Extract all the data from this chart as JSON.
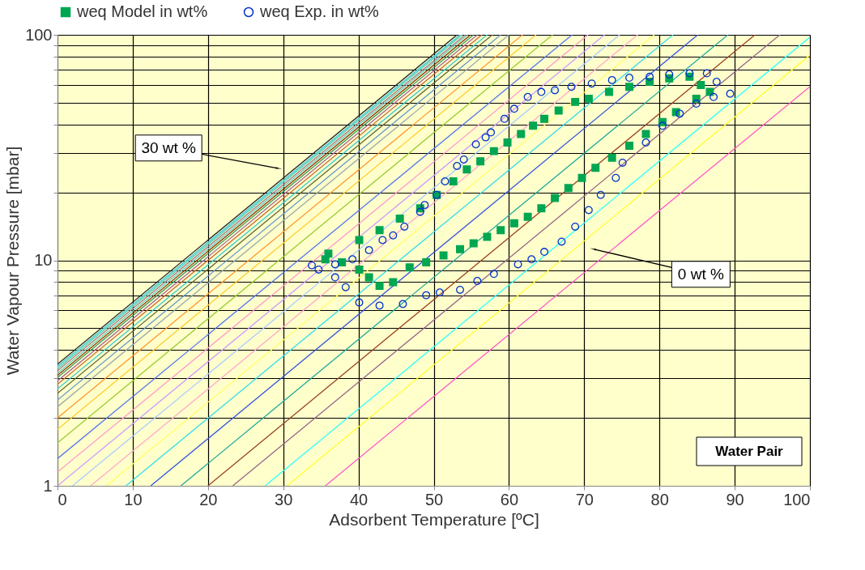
{
  "chart_data": {
    "type": "line",
    "xlabel": "Adsorbent Temperature [ºC]",
    "ylabel": "Water Vapour Pressure [mbar]",
    "xlim": [
      0,
      100
    ],
    "xticks": [
      0,
      10,
      20,
      30,
      40,
      50,
      60,
      70,
      80,
      90,
      100
    ],
    "ylim": [
      1,
      100
    ],
    "log": "y",
    "yticks": [
      1,
      {
        "value": 2,
        "label": null
      },
      {
        "value": 3,
        "label": null
      },
      {
        "value": 4,
        "label": null
      },
      {
        "value": 5,
        "label": null
      },
      {
        "value": 6,
        "label": null
      },
      {
        "value": 7,
        "label": null
      },
      {
        "value": 8,
        "label": null
      },
      {
        "value": 9,
        "label": null
      },
      10,
      {
        "value": 20,
        "label": null
      },
      {
        "value": 30,
        "label": null
      },
      {
        "value": 40,
        "label": null
      },
      {
        "value": 50,
        "label": null
      },
      {
        "value": 60,
        "label": null
      },
      {
        "value": 70,
        "label": null
      },
      {
        "value": 80,
        "label": null
      },
      {
        "value": 90,
        "label": null
      },
      100
    ],
    "grid": true,
    "legend": "top",
    "line_style": "solid",
    "annotations": [
      {
        "text": "30 wt %",
        "x": 29.3,
        "y": 25.6
      },
      {
        "text": "0 wt %",
        "x": 71.3,
        "y": 11.2
      },
      "Water Pair"
    ],
    "series": [
      {
        "type": "scatter",
        "marker": "square",
        "name": "weq Model in wt%",
        "color": "#00a651",
        "x": [
          36.0,
          40.1,
          42.8,
          45.5,
          48.2,
          50.4,
          52.6,
          54.4,
          56.2,
          58.0,
          59.8,
          61.6,
          63.2,
          64.7,
          66.6,
          68.8,
          70.6,
          73.3,
          76.0,
          78.7,
          81.3,
          84.0,
          85.5,
          86.7,
          84.9,
          82.2,
          80.4,
          78.2,
          76.0,
          73.7,
          71.5,
          69.7,
          67.9,
          66.1,
          64.3,
          62.5,
          60.7,
          58.9,
          57.1,
          55.3,
          53.5,
          51.3,
          49.0,
          46.8,
          44.6,
          42.8,
          41.4,
          40.1,
          37.8,
          35.6
        ],
        "values": [
          10.7,
          12.3,
          13.6,
          15.3,
          17.0,
          19.5,
          22.4,
          25.3,
          27.5,
          30.5,
          33.3,
          36.3,
          39.5,
          42.4,
          46.2,
          50.4,
          52.1,
          55.8,
          58.8,
          61.9,
          64.1,
          65.2,
          59.9,
          55.8,
          52.1,
          45.4,
          41.0,
          36.3,
          32.2,
          28.5,
          25.7,
          23.2,
          20.9,
          18.9,
          17.0,
          15.6,
          14.6,
          13.6,
          12.7,
          11.9,
          11.2,
          10.5,
          9.8,
          9.3,
          8.0,
          7.7,
          8.4,
          9.1,
          9.8,
          10.1
        ]
      },
      {
        "type": "scatter",
        "marker": "circle",
        "name": "weq Exp. in wt%",
        "color": "#0033cc",
        "x": [
          36.9,
          39.2,
          41.4,
          43.2,
          44.6,
          46.1,
          48.2,
          48.8,
          50.4,
          51.5,
          53.1,
          54.0,
          55.6,
          56.9,
          57.6,
          59.4,
          60.7,
          62.5,
          64.3,
          66.1,
          68.3,
          71.0,
          73.7,
          76.0,
          78.7,
          81.3,
          84.0,
          86.3,
          87.6,
          89.4,
          87.2,
          84.9,
          82.7,
          80.4,
          78.2,
          75.1,
          74.2,
          72.2,
          70.6,
          68.8,
          67.0,
          64.7,
          63.0,
          61.2,
          58.0,
          55.8,
          53.5,
          50.8,
          49.0,
          45.9,
          42.8,
          40.1,
          38.3,
          36.9,
          34.7,
          33.8
        ],
        "values": [
          9.6,
          10.1,
          11.1,
          12.3,
          12.9,
          14.1,
          16.4,
          17.6,
          19.5,
          22.4,
          26.2,
          28.0,
          32.7,
          35.1,
          36.9,
          42.4,
          47.0,
          53.0,
          55.8,
          56.8,
          58.8,
          60.8,
          63.0,
          64.5,
          65.2,
          66.8,
          67.5,
          67.5,
          61.9,
          54.8,
          53.0,
          49.5,
          44.7,
          39.5,
          33.3,
          27.1,
          23.2,
          19.5,
          16.7,
          14.1,
          12.1,
          10.9,
          10.1,
          9.6,
          8.7,
          8.1,
          7.4,
          7.2,
          7.0,
          6.4,
          6.3,
          6.5,
          7.6,
          8.4,
          9.1,
          9.5
        ]
      },
      {
        "color": "#ff55cc",
        "x": [
          35.6,
          100
        ],
        "values": [
          1,
          58.9
        ]
      },
      {
        "color": "#ffff33",
        "x": [
          30.5,
          100
        ],
        "values": [
          1,
          81.3
        ]
      },
      {
        "color": "#33ffff",
        "x": [
          27.6,
          100
        ],
        "values": [
          1,
          97.7
        ]
      },
      {
        "color": "#996688",
        "x": [
          23.3,
          96.0
        ],
        "values": [
          1,
          100
        ]
      },
      {
        "color": "#994422",
        "x": [
          20.0,
          92.7
        ],
        "values": [
          1,
          100
        ]
      },
      {
        "color": "#22aa99",
        "x": [
          16.4,
          89.1
        ],
        "values": [
          1,
          100
        ]
      },
      {
        "color": "#3355dd",
        "x": [
          12.4,
          85.1
        ],
        "values": [
          1,
          100
        ]
      },
      {
        "color": "#33ddee",
        "x": [
          9.1,
          81.8
        ],
        "values": [
          1,
          100
        ]
      },
      {
        "color": "#ffff66",
        "x": [
          6.5,
          79.3
        ],
        "values": [
          1,
          100
        ]
      },
      {
        "color": "#ffaacc",
        "x": [
          4.4,
          77.1
        ],
        "values": [
          1,
          100
        ]
      },
      {
        "color": "#aaccff",
        "x": [
          2.0,
          74.7
        ],
        "values": [
          1,
          100
        ]
      },
      {
        "color": "#cc99ff",
        "x": [
          0,
          72.7
        ],
        "values": [
          1,
          100
        ]
      },
      {
        "color": "#ff99cc",
        "x": [
          0,
          70.5
        ],
        "values": [
          1.15,
          100
        ]
      },
      {
        "color": "#5577ee",
        "x": [
          0,
          68.4
        ],
        "values": [
          1.32,
          100
        ]
      },
      {
        "color": "#99cc33",
        "x": [
          0,
          65.8
        ],
        "values": [
          1.55,
          100
        ]
      },
      {
        "color": "#ffcc33",
        "x": [
          0,
          63.6
        ],
        "values": [
          1.78,
          100
        ]
      },
      {
        "color": "#ff9933",
        "x": [
          0,
          61.8
        ],
        "values": [
          2.0,
          100
        ]
      },
      {
        "color": "#99aaaa",
        "x": [
          0,
          60.0
        ],
        "values": [
          2.24,
          100
        ]
      },
      {
        "color": "#6699cc",
        "x": [
          0,
          58.9
        ],
        "values": [
          2.4,
          100
        ]
      },
      {
        "color": "#666633",
        "x": [
          0,
          57.8
        ],
        "values": [
          2.57,
          100
        ]
      },
      {
        "color": "#33cccc",
        "x": [
          0,
          57.1
        ],
        "values": [
          2.69,
          100
        ]
      },
      {
        "color": "#cc6633",
        "x": [
          0,
          56.4
        ],
        "values": [
          2.82,
          100
        ]
      },
      {
        "color": "#aa6699",
        "x": [
          0,
          55.8
        ],
        "values": [
          2.92,
          100
        ]
      },
      {
        "color": "#339966",
        "x": [
          0,
          55.3
        ],
        "values": [
          3.02,
          100
        ]
      },
      {
        "color": "#883300",
        "x": [
          0,
          54.9
        ],
        "values": [
          3.09,
          100
        ]
      },
      {
        "color": "#66cccc",
        "x": [
          0,
          54.5
        ],
        "values": [
          3.16,
          100
        ]
      },
      {
        "color": "#aa7788",
        "x": [
          0,
          54.2
        ],
        "values": [
          3.24,
          100
        ]
      },
      {
        "color": "#55ccbb",
        "x": [
          0,
          53.8
        ],
        "values": [
          3.31,
          100
        ]
      },
      {
        "color": "#88ddcc",
        "x": [
          0,
          53.6
        ],
        "values": [
          3.35,
          100
        ]
      },
      {
        "color": "#44ccdd",
        "x": [
          0,
          53.5
        ],
        "values": [
          3.39,
          100
        ]
      },
      {
        "color": "#222222",
        "x": [
          0,
          53.1
        ],
        "values": [
          3.46,
          100
        ]
      }
    ]
  }
}
